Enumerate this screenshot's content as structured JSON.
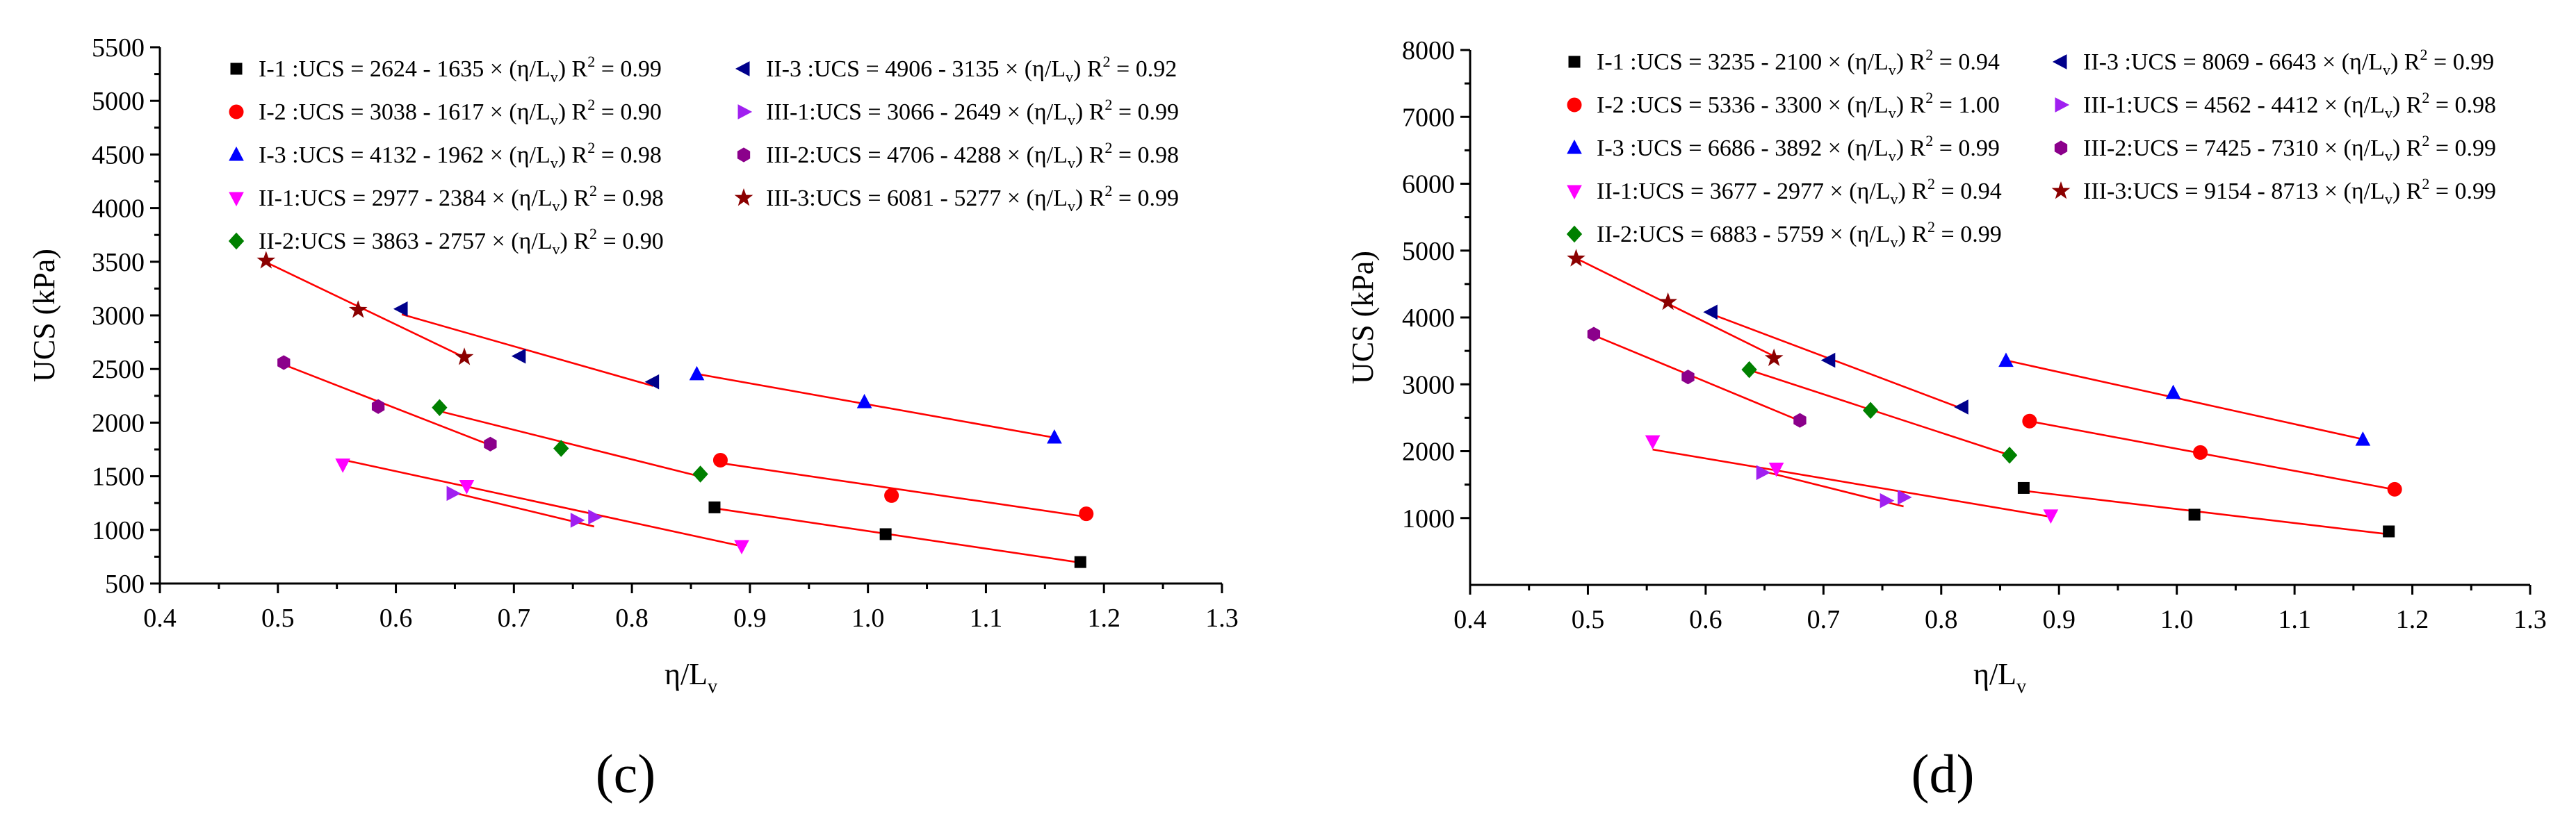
{
  "charts": [
    {
      "panel_label": "(c)",
      "xlabel": "η/L",
      "xlabel_sub": "v",
      "ylabel": "UCS (kPa)",
      "xlim": [
        0.4,
        1.3
      ],
      "ylim": [
        500,
        5500
      ],
      "xticks": [
        0.4,
        0.5,
        0.6,
        0.7,
        0.8,
        0.9,
        1.0,
        1.1,
        1.2,
        1.3
      ],
      "yticks": [
        500,
        1000,
        1500,
        2000,
        2500,
        3000,
        3500,
        4000,
        4500,
        5000,
        5500
      ],
      "xtick_labels": [
        "0.4",
        "0.5",
        "0.6",
        "0.7",
        "0.8",
        "0.9",
        "1.0",
        "1.1",
        "1.2",
        "1.3"
      ],
      "ytick_labels": [
        "500",
        "1000",
        "1500",
        "2000",
        "2500",
        "3000",
        "3500",
        "4000",
        "4500",
        "5000",
        "5500"
      ],
      "series": [
        {
          "name": "I-1",
          "marker": "square",
          "color": "#000000",
          "label": "I-1 :UCS = 2624 - 1635 × (η/L",
          "r2": "= 0.99",
          "a": 2624,
          "b": 1635,
          "x": [
            0.87,
            1.015,
            1.18
          ],
          "y": [
            1210,
            960,
            700
          ]
        },
        {
          "name": "I-2",
          "marker": "circle",
          "color": "#ff0000",
          "label": "I-2 :UCS = 3038 - 1617 × (η/L",
          "r2": "= 0.90",
          "a": 3038,
          "b": 1617,
          "x": [
            0.875,
            1.02,
            1.185
          ],
          "y": [
            1650,
            1320,
            1150
          ]
        },
        {
          "name": "I-3",
          "marker": "triangle-up",
          "color": "#0000ff",
          "label": "I-3 :UCS = 4132 - 1962 × (η/L",
          "r2": "= 0.98",
          "a": 4132,
          "b": 1962,
          "x": [
            0.855,
            0.997,
            1.158
          ],
          "y": [
            2450,
            2190,
            1860
          ]
        },
        {
          "name": "II-1",
          "marker": "triangle-down",
          "color": "#ff00ff",
          "label": "II-1:UCS = 2977 - 2384 × (η/L",
          "r2": "= 0.98",
          "a": 2977,
          "b": 2384,
          "x": [
            0.555,
            0.66,
            0.893
          ],
          "y": [
            1610,
            1410,
            850
          ]
        },
        {
          "name": "II-2",
          "marker": "diamond",
          "color": "#008000",
          "label": "II-2:UCS = 3863 - 2757 × (η/L",
          "r2": "= 0.90",
          "a": 3863,
          "b": 2757,
          "x": [
            0.637,
            0.74,
            0.858
          ],
          "y": [
            2140,
            1760,
            1520
          ]
        },
        {
          "name": "II-3",
          "marker": "triangle-left",
          "color": "#00008b",
          "label": "II-3 :UCS = 4906 - 3135 × (η/L",
          "r2": "= 0.92",
          "a": 4906,
          "b": 3135,
          "x": [
            0.605,
            0.705,
            0.818
          ],
          "y": [
            3060,
            2620,
            2380
          ]
        },
        {
          "name": "III-1",
          "marker": "triangle-right",
          "color": "#a020f0",
          "label": "III-1:UCS = 3066 - 2649 × (η/L",
          "r2": "= 0.99",
          "a": 3066,
          "b": 2649,
          "x": [
            0.648,
            0.753,
            0.768
          ],
          "y": [
            1340,
            1090,
            1120
          ]
        },
        {
          "name": "III-2",
          "marker": "hexagon",
          "color": "#8b008b",
          "label": "III-2:UCS = 4706 - 4288 × (η/L",
          "r2": "= 0.98",
          "a": 4706,
          "b": 4288,
          "x": [
            0.505,
            0.585,
            0.68
          ],
          "y": [
            2560,
            2150,
            1800
          ]
        },
        {
          "name": "III-3",
          "marker": "star",
          "color": "#8b0000",
          "label": "III-3:UCS = 6081 - 5277 × (η/L",
          "r2": "= 0.99",
          "a": 6081,
          "b": 5277,
          "x": [
            0.49,
            0.568,
            0.658
          ],
          "y": [
            3510,
            3050,
            2610
          ]
        }
      ]
    },
    {
      "panel_label": "(d)",
      "xlabel": "η/L",
      "xlabel_sub": "v",
      "ylabel": "UCS (kPa)",
      "xlim": [
        0.4,
        1.3
      ],
      "ylim": [
        0,
        8000
      ],
      "xticks": [
        0.4,
        0.5,
        0.6,
        0.7,
        0.8,
        0.9,
        1.0,
        1.1,
        1.2,
        1.3
      ],
      "yticks": [
        1000,
        2000,
        3000,
        4000,
        5000,
        6000,
        7000,
        8000
      ],
      "xtick_labels": [
        "0.4",
        "0.5",
        "0.6",
        "0.7",
        "0.8",
        "0.9",
        "1.0",
        "1.1",
        "1.2",
        "1.3"
      ],
      "ytick_labels": [
        "1000",
        "2000",
        "3000",
        "4000",
        "5000",
        "6000",
        "7000",
        "8000"
      ],
      "series": [
        {
          "name": "I-1",
          "marker": "square",
          "color": "#000000",
          "label": "I-1 :UCS = 3235 - 2100 × (η/L",
          "r2": "= 0.94",
          "a": 3235,
          "b": 2100,
          "x": [
            0.87,
            1.015,
            1.18
          ],
          "y": [
            1450,
            1050,
            800
          ]
        },
        {
          "name": "I-2",
          "marker": "circle",
          "color": "#ff0000",
          "label": "I-2 :UCS = 5336 - 3300 × (η/L",
          "r2": "= 1.00",
          "a": 5336,
          "b": 3300,
          "x": [
            0.875,
            1.02,
            1.185
          ],
          "y": [
            2450,
            1980,
            1430
          ]
        },
        {
          "name": "I-3",
          "marker": "triangle-up",
          "color": "#0000ff",
          "label": "I-3 :UCS = 6686 - 3892 × (η/L",
          "r2": "= 0.99",
          "a": 6686,
          "b": 3892,
          "x": [
            0.855,
            0.997,
            1.158
          ],
          "y": [
            3350,
            2870,
            2170
          ]
        },
        {
          "name": "II-1",
          "marker": "triangle-down",
          "color": "#ff00ff",
          "label": "II-1:UCS = 3677 - 2977 × (η/L",
          "r2": "= 0.94",
          "a": 3677,
          "b": 2977,
          "x": [
            0.555,
            0.66,
            0.893
          ],
          "y": [
            2150,
            1740,
            1040
          ]
        },
        {
          "name": "II-2",
          "marker": "diamond",
          "color": "#008000",
          "label": "II-2:UCS = 6883 - 5759 × (η/L",
          "r2": "= 0.99",
          "a": 6883,
          "b": 5759,
          "x": [
            0.637,
            0.74,
            0.858
          ],
          "y": [
            3220,
            2610,
            1940
          ]
        },
        {
          "name": "II-3",
          "marker": "triangle-left",
          "color": "#00008b",
          "label": "II-3 :UCS = 8069 - 6643 × (η/L",
          "r2": "= 0.99",
          "a": 8069,
          "b": 6643,
          "x": [
            0.605,
            0.705,
            0.818
          ],
          "y": [
            4080,
            3360,
            2660
          ]
        },
        {
          "name": "III-1",
          "marker": "triangle-right",
          "color": "#a020f0",
          "label": "III-1:UCS = 4562 - 4412 × (η/L",
          "r2": "= 0.98",
          "a": 4562,
          "b": 4412,
          "x": [
            0.648,
            0.753,
            0.768
          ],
          "y": [
            1680,
            1260,
            1310
          ]
        },
        {
          "name": "III-2",
          "marker": "hexagon",
          "color": "#8b008b",
          "label": "III-2:UCS = 7425 - 7310 × (η/L",
          "r2": "= 0.99",
          "a": 7425,
          "b": 7310,
          "x": [
            0.505,
            0.585,
            0.68
          ],
          "y": [
            3750,
            3110,
            2460
          ]
        },
        {
          "name": "III-3",
          "marker": "star",
          "color": "#8b0000",
          "label": "III-3:UCS = 9154 - 8713 × (η/L",
          "r2": "= 0.99",
          "a": 9154,
          "b": 8713,
          "x": [
            0.49,
            0.568,
            0.658
          ],
          "y": [
            4880,
            4230,
            3390
          ]
        }
      ]
    }
  ],
  "chart_data": [
    {
      "type": "scatter",
      "title": "(c)",
      "xlabel": "η/Lv",
      "ylabel": "UCS (kPa)",
      "xlim": [
        0.4,
        1.3
      ],
      "ylim": [
        500,
        5500
      ],
      "series": [
        {
          "name": "I-1",
          "x": [
            0.87,
            1.015,
            1.18
          ],
          "y": [
            1210,
            960,
            700
          ],
          "fit": "UCS = 2624 - 1635 × (η/Lv), R² = 0.99"
        },
        {
          "name": "I-2",
          "x": [
            0.875,
            1.02,
            1.185
          ],
          "y": [
            1650,
            1320,
            1150
          ],
          "fit": "UCS = 3038 - 1617 × (η/Lv), R² = 0.90"
        },
        {
          "name": "I-3",
          "x": [
            0.855,
            0.997,
            1.158
          ],
          "y": [
            2450,
            2190,
            1860
          ],
          "fit": "UCS = 4132 - 1962 × (η/Lv), R² = 0.98"
        },
        {
          "name": "II-1",
          "x": [
            0.555,
            0.66,
            0.893
          ],
          "y": [
            1610,
            1410,
            850
          ],
          "fit": "UCS = 2977 - 2384 × (η/Lv), R² = 0.98"
        },
        {
          "name": "II-2",
          "x": [
            0.637,
            0.74,
            0.858
          ],
          "y": [
            2140,
            1760,
            1520
          ],
          "fit": "UCS = 3863 - 2757 × (η/Lv), R² = 0.90"
        },
        {
          "name": "II-3",
          "x": [
            0.605,
            0.705,
            0.818
          ],
          "y": [
            3060,
            2620,
            2380
          ],
          "fit": "UCS = 4906 - 3135 × (η/Lv), R² = 0.92"
        },
        {
          "name": "III-1",
          "x": [
            0.648,
            0.753,
            0.768
          ],
          "y": [
            1340,
            1090,
            1120
          ],
          "fit": "UCS = 3066 - 2649 × (η/Lv), R² = 0.99"
        },
        {
          "name": "III-2",
          "x": [
            0.505,
            0.585,
            0.68
          ],
          "y": [
            2560,
            2150,
            1800
          ],
          "fit": "UCS = 4706 - 4288 × (η/Lv), R² = 0.98"
        },
        {
          "name": "III-3",
          "x": [
            0.49,
            0.568,
            0.658
          ],
          "y": [
            3510,
            3050,
            2610
          ],
          "fit": "UCS = 6081 - 5277 × (η/Lv), R² = 0.99"
        }
      ]
    },
    {
      "type": "scatter",
      "title": "(d)",
      "xlabel": "η/Lv",
      "ylabel": "UCS (kPa)",
      "xlim": [
        0.4,
        1.3
      ],
      "ylim": [
        0,
        8000
      ],
      "series": [
        {
          "name": "I-1",
          "x": [
            0.87,
            1.015,
            1.18
          ],
          "y": [
            1450,
            1050,
            800
          ],
          "fit": "UCS = 3235 - 2100 × (η/Lv), R² = 0.94"
        },
        {
          "name": "I-2",
          "x": [
            0.875,
            1.02,
            1.185
          ],
          "y": [
            2450,
            1980,
            1430
          ],
          "fit": "UCS = 5336 - 3300 × (η/Lv), R² = 1.00"
        },
        {
          "name": "I-3",
          "x": [
            0.855,
            0.997,
            1.158
          ],
          "y": [
            3350,
            2870,
            2170
          ],
          "fit": "UCS = 6686 - 3892 × (η/Lv), R² = 0.99"
        },
        {
          "name": "II-1",
          "x": [
            0.555,
            0.66,
            0.893
          ],
          "y": [
            2150,
            1740,
            1040
          ],
          "fit": "UCS = 3677 - 2977 × (η/Lv), R² = 0.94"
        },
        {
          "name": "II-2",
          "x": [
            0.637,
            0.74,
            0.858
          ],
          "y": [
            3220,
            2610,
            1940
          ],
          "fit": "UCS = 6883 - 5759 × (η/Lv), R² = 0.99"
        },
        {
          "name": "II-3",
          "x": [
            0.605,
            0.705,
            0.818
          ],
          "y": [
            4080,
            3360,
            2660
          ],
          "fit": "UCS = 8069 - 6643 × (η/Lv), R² = 0.99"
        },
        {
          "name": "III-1",
          "x": [
            0.648,
            0.753,
            0.768
          ],
          "y": [
            1680,
            1260,
            1310
          ],
          "fit": "UCS = 4562 - 4412 × (η/Lv), R² = 0.98"
        },
        {
          "name": "III-2",
          "x": [
            0.505,
            0.585,
            0.68
          ],
          "y": [
            3750,
            3110,
            2460
          ],
          "fit": "UCS = 7425 - 7310 × (η/Lv), R² = 0.99"
        },
        {
          "name": "III-3",
          "x": [
            0.49,
            0.568,
            0.658
          ],
          "y": [
            4880,
            4230,
            3390
          ],
          "fit": "UCS = 9154 - 8713 × (η/Lv), R² = 0.99"
        }
      ]
    }
  ]
}
